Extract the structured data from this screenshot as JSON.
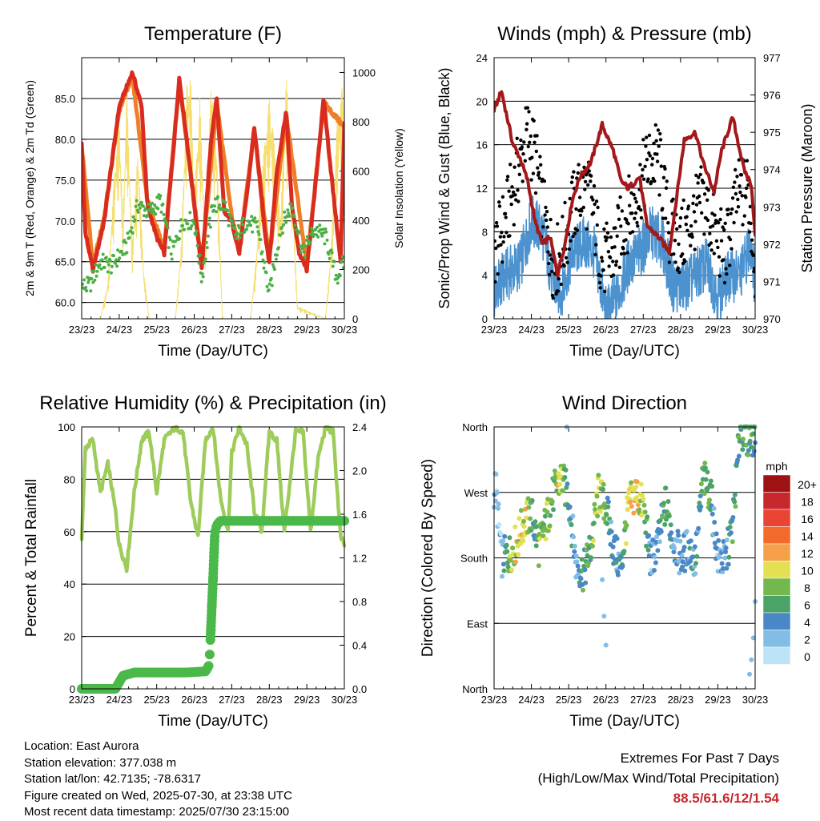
{
  "chart_data": [
    {
      "type": "line",
      "title": "Temperature (F)",
      "xlabel": "Time (Day/UTC)",
      "ylabel_left": "2m & 9m T (Red, Orange) & 2m Td (Green)",
      "ylabel_right": "Solar Insolation (Yellow)",
      "x_ticks": [
        "23/23",
        "24/23",
        "25/23",
        "26/23",
        "27/23",
        "28/23",
        "29/23",
        "30/23"
      ],
      "ylim_left": [
        58,
        90
      ],
      "yticks_left": [
        "60.0",
        "65.0",
        "70.0",
        "75.0",
        "80.0",
        "85.0"
      ],
      "ylim_right": [
        0,
        1060
      ],
      "yticks_right": [
        "0",
        "200",
        "400",
        "600",
        "800",
        "1000"
      ],
      "series": [
        {
          "name": "2m T",
          "color": "#d92c1e",
          "x": [
            0,
            0.1,
            0.3,
            0.6,
            1.0,
            1.35,
            1.6,
            1.75,
            2.0,
            2.2,
            2.45,
            2.6,
            2.8,
            3.0,
            3.2,
            3.45,
            3.6,
            3.8,
            4.0,
            4.2,
            4.45,
            4.6,
            4.9,
            5.0,
            5.2,
            5.45,
            5.6,
            5.8,
            6.0,
            6.2,
            6.45,
            6.6,
            6.9,
            7.0
          ],
          "y": [
            79.5,
            68.5,
            64,
            70,
            84,
            88.2,
            84,
            72,
            68,
            66,
            79,
            87.5,
            80,
            72,
            64,
            80,
            85,
            71,
            70,
            66,
            75,
            81.5,
            68,
            65,
            76,
            83.5,
            72,
            66,
            64,
            73,
            85,
            78,
            65,
            82
          ]
        },
        {
          "name": "9m T",
          "color": "#f07e26",
          "x": [
            0,
            0.3,
            0.6,
            1.0,
            1.35,
            1.75,
            2.2,
            2.6,
            3.0,
            3.2,
            3.6,
            4.0,
            4.2,
            4.6,
            5.0,
            5.45,
            6.0,
            6.45,
            7.0
          ],
          "y": [
            79.3,
            64.5,
            70.5,
            83.5,
            87.8,
            72.5,
            66.5,
            87,
            72.5,
            64.5,
            84.5,
            70.5,
            66.5,
            81,
            65.5,
            83,
            64.5,
            84.5,
            81.5
          ]
        },
        {
          "name": "2m Td",
          "color": "#4caf45",
          "x": [
            0,
            0.2,
            0.5,
            0.8,
            1.2,
            1.5,
            1.8,
            2.1,
            2.4,
            2.7,
            3.0,
            3.2,
            3.5,
            3.8,
            4.1,
            4.4,
            4.7,
            5.0,
            5.3,
            5.6,
            5.9,
            6.2,
            6.5,
            6.8,
            7.0
          ],
          "y": [
            62,
            62,
            65,
            64.5,
            67,
            72,
            71,
            72.5,
            66,
            70,
            70,
            63,
            72,
            72,
            68,
            70,
            69,
            61,
            69,
            72,
            66,
            69,
            68,
            63,
            65
          ]
        },
        {
          "name": "Solar Insolation",
          "color": "#f6df70",
          "axis": "right",
          "x": [
            0,
            0.5,
            0.7,
            0.85,
            1.0,
            1.1,
            1.2,
            1.35,
            1.5,
            1.65,
            1.8,
            2.5,
            2.65,
            2.8,
            2.9,
            3.0,
            3.15,
            3.3,
            3.45,
            3.6,
            3.75,
            4.5,
            4.65,
            4.8,
            5.0,
            5.15,
            5.3,
            5.45,
            5.6,
            5.75,
            6.5,
            6.65,
            6.8,
            6.95,
            7.0
          ],
          "y": [
            0,
            0,
            150,
            550,
            850,
            400,
            950,
            300,
            700,
            200,
            0,
            0,
            300,
            950,
            1000,
            500,
            900,
            300,
            1000,
            700,
            0,
            0,
            250,
            600,
            900,
            700,
            400,
            1000,
            600,
            50,
            0,
            300,
            800,
            950,
            750
          ]
        }
      ]
    },
    {
      "type": "scatter",
      "title": "Winds (mph) & Pressure (mb)",
      "xlabel": "Time (Day/UTC)",
      "ylabel_left": "Sonic/Prop Wind & Gust (Blue, Black)",
      "ylabel_right": "Station Pressure (Maroon)",
      "x_ticks": [
        "23/23",
        "24/23",
        "25/23",
        "26/23",
        "27/23",
        "28/23",
        "29/23",
        "30/23"
      ],
      "ylim_left": [
        0,
        24
      ],
      "yticks_left": [
        "0",
        "4",
        "8",
        "12",
        "16",
        "20",
        "24"
      ],
      "ylim_right": [
        970,
        977
      ],
      "yticks_right": [
        "970",
        "971",
        "972",
        "973",
        "974",
        "975",
        "976",
        "977"
      ],
      "series": [
        {
          "name": "Sonic/Prop Wind",
          "color": "#4b92cf",
          "x": [
            0,
            0.3,
            0.7,
            1.0,
            1.3,
            1.6,
            1.8,
            2.1,
            2.4,
            2.7,
            3.0,
            3.3,
            3.6,
            3.9,
            4.2,
            4.5,
            4.8,
            5.1,
            5.4,
            5.7,
            6.0,
            6.3,
            6.6,
            6.9,
            7.0
          ],
          "y": [
            2.5,
            4,
            5,
            9,
            8,
            3,
            2.5,
            6,
            7,
            6,
            0.5,
            2,
            5,
            6,
            8,
            7,
            3,
            3,
            4,
            5,
            2,
            4,
            4,
            7,
            3
          ]
        },
        {
          "name": "Gust",
          "color": "#000000",
          "x": [
            0,
            0.3,
            0.6,
            0.9,
            1.1,
            1.3,
            1.6,
            1.8,
            2.1,
            2.4,
            2.6,
            2.9,
            3.2,
            3.5,
            3.8,
            4.1,
            4.4,
            4.7,
            5.0,
            5.3,
            5.6,
            5.9,
            6.2,
            6.5,
            6.8,
            7.0
          ],
          "y": [
            6,
            9,
            13,
            17,
            15,
            10,
            5,
            6,
            10,
            12,
            11,
            5,
            6,
            9,
            11,
            14,
            15,
            8,
            7,
            9,
            11,
            8,
            6,
            11,
            12,
            5
          ]
        },
        {
          "name": "Station Pressure",
          "color": "#a3191b",
          "axis": "right",
          "x": [
            0,
            0.2,
            0.35,
            0.5,
            0.7,
            0.9,
            1.1,
            1.3,
            1.5,
            1.7,
            1.9,
            2.1,
            2.3,
            2.6,
            2.9,
            3.2,
            3.4,
            3.6,
            3.9,
            4.1,
            4.4,
            4.7,
            4.9,
            5.1,
            5.4,
            5.6,
            5.9,
            6.1,
            6.4,
            6.7,
            6.9,
            7.0
          ],
          "y": [
            975.6,
            976.1,
            975.4,
            974.7,
            974.3,
            973.7,
            972.6,
            972.0,
            972.2,
            971.2,
            972.0,
            973.2,
            973.8,
            974.2,
            975.2,
            974.5,
            973.7,
            973.5,
            973.8,
            972.5,
            972.2,
            971.8,
            973.3,
            974.8,
            975.0,
            974.2,
            973.4,
            974.5,
            975.4,
            974.0,
            973.6,
            972.2
          ]
        }
      ]
    },
    {
      "type": "line",
      "title": "Relative Humidity (%) & Precipitation (in)",
      "xlabel": "Time (Day/UTC)",
      "ylabel": "Percent & Total Rainfall",
      "x_ticks": [
        "23/23",
        "24/23",
        "25/23",
        "26/23",
        "27/23",
        "28/23",
        "29/23",
        "30/23"
      ],
      "ylim_left": [
        0,
        100
      ],
      "yticks_left": [
        "0",
        "20",
        "40",
        "60",
        "80",
        "100"
      ],
      "ylim_right": [
        0,
        2.4
      ],
      "yticks_right": [
        "0.0",
        "0.4",
        "0.8",
        "1.2",
        "1.6",
        "2.0",
        "2.4"
      ],
      "series": [
        {
          "name": "Relative Humidity",
          "color": "#9dcc5a",
          "x": [
            0,
            0.1,
            0.3,
            0.5,
            0.7,
            0.9,
            1.0,
            1.2,
            1.4,
            1.6,
            1.8,
            2.0,
            2.2,
            2.5,
            2.7,
            2.9,
            3.1,
            3.3,
            3.5,
            3.7,
            3.9,
            4.0,
            4.2,
            4.4,
            4.6,
            4.8,
            5.0,
            5.2,
            5.4,
            5.7,
            5.9,
            6.1,
            6.3,
            6.5,
            6.7,
            6.9,
            7.0
          ],
          "y": [
            57,
            92,
            95,
            75,
            86,
            68,
            55,
            46,
            75,
            95,
            98,
            75,
            95,
            100,
            98,
            72,
            58,
            95,
            100,
            73,
            60,
            90,
            100,
            93,
            68,
            60,
            98,
            95,
            60,
            98,
            98,
            60,
            88,
            100,
            98,
            58,
            55
          ]
        },
        {
          "name": "Total Precipitation",
          "color": "#4bb84a",
          "axis": "right",
          "x": [
            0,
            0.9,
            1.1,
            1.4,
            1.8,
            2.3,
            2.8,
            3.3,
            3.4,
            3.45,
            3.5,
            3.55,
            3.6,
            3.7,
            4.0,
            5.0,
            6.0,
            7.0
          ],
          "y": [
            0,
            0,
            0.12,
            0.15,
            0.15,
            0.15,
            0.15,
            0.16,
            0.22,
            0.6,
            1.0,
            1.43,
            1.5,
            1.54,
            1.54,
            1.54,
            1.54,
            1.54
          ]
        }
      ]
    },
    {
      "type": "scatter",
      "title": "Wind Direction",
      "xlabel": "Time (Day/UTC)",
      "ylabel": "Direction (Colored By Speed)",
      "x_ticks": [
        "23/23",
        "24/23",
        "25/23",
        "26/23",
        "27/23",
        "28/23",
        "29/23",
        "30/23"
      ],
      "y_ticks": [
        "North",
        "East",
        "South",
        "West",
        "North"
      ],
      "ylim": [
        0,
        360
      ],
      "x": [
        0.05,
        0.2,
        0.4,
        0.6,
        0.8,
        1.0,
        1.2,
        1.4,
        1.6,
        1.8,
        2.0,
        2.2,
        2.4,
        2.6,
        2.8,
        3.0,
        3.2,
        3.4,
        3.6,
        3.8,
        4.0,
        4.2,
        4.4,
        4.6,
        4.8,
        5.0,
        5.2,
        5.4,
        5.6,
        5.8,
        6.0,
        6.2,
        6.4,
        6.6,
        6.8,
        7.0
      ],
      "direction": [
        275,
        180,
        185,
        200,
        230,
        240,
        195,
        230,
        270,
        290,
        265,
        170,
        160,
        195,
        270,
        250,
        195,
        165,
        250,
        270,
        250,
        175,
        200,
        255,
        205,
        180,
        195,
        175,
        290,
        270,
        180,
        175,
        225,
        360,
        345,
        350
      ],
      "speed": [
        3,
        2,
        8,
        10,
        10,
        6,
        7,
        8,
        8,
        10,
        5,
        2,
        6,
        6,
        10,
        7,
        3,
        4,
        10,
        11,
        8,
        2,
        4,
        7,
        4,
        3,
        3,
        4,
        7,
        6,
        2,
        3,
        6,
        6,
        7,
        5
      ],
      "colorbar": {
        "title": "mph",
        "labels": [
          "20+",
          "18",
          "16",
          "14",
          "12",
          "10",
          "8",
          "6",
          "4",
          "2",
          "0"
        ],
        "colors": [
          "#9f1214",
          "#c8272d",
          "#e94532",
          "#f26b2c",
          "#f7a04a",
          "#e4e054",
          "#73b74d",
          "#4aa468",
          "#4a87c6",
          "#82bde6",
          "#bde3f6"
        ]
      }
    }
  ],
  "station": {
    "location": "Location: East Aurora",
    "elevation": "Station elevation: 377.038 m",
    "latlon": "Station lat/lon: 42.7135; -78.6317",
    "created": "Figure created on Wed, 2025-07-30, at 23:38 UTC",
    "timestamp": "Most recent data timestamp: 2025/07/30 23:15:00"
  },
  "extremes": {
    "title": "Extremes For Past 7 Days",
    "subtitle": "(High/Low/Max Wind/Total Precipitation)",
    "value": "88.5/61.6/12/1.54"
  }
}
